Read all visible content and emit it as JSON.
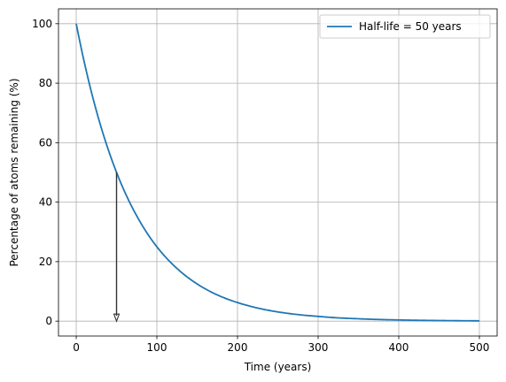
{
  "chart_data": {
    "type": "line",
    "title": "",
    "xlabel": "Time (years)",
    "ylabel": "Percentage of atoms remaining (%)",
    "xlim": [
      -22,
      522
    ],
    "ylim": [
      -5,
      105
    ],
    "xticks": [
      0,
      100,
      200,
      300,
      400,
      500
    ],
    "yticks": [
      0,
      20,
      40,
      60,
      80,
      100
    ],
    "grid": true,
    "legend_position": "top-right",
    "series": [
      {
        "name": "Half-life = 50 years",
        "color": "#1f77b4",
        "x": [
          0,
          25,
          50,
          75,
          100,
          125,
          150,
          175,
          200,
          225,
          250,
          275,
          300,
          325,
          350,
          375,
          400,
          425,
          450,
          475,
          500
        ],
        "y": [
          100,
          70.7,
          50,
          35.4,
          25,
          17.7,
          12.5,
          8.8,
          6.25,
          4.4,
          3.1,
          2.2,
          1.6,
          1.1,
          0.8,
          0.55,
          0.4,
          0.28,
          0.2,
          0.14,
          0.1
        ]
      }
    ],
    "annotations": [
      {
        "type": "arrow",
        "from": [
          50,
          50
        ],
        "to": [
          50,
          0
        ],
        "color": "#333333"
      }
    ]
  }
}
